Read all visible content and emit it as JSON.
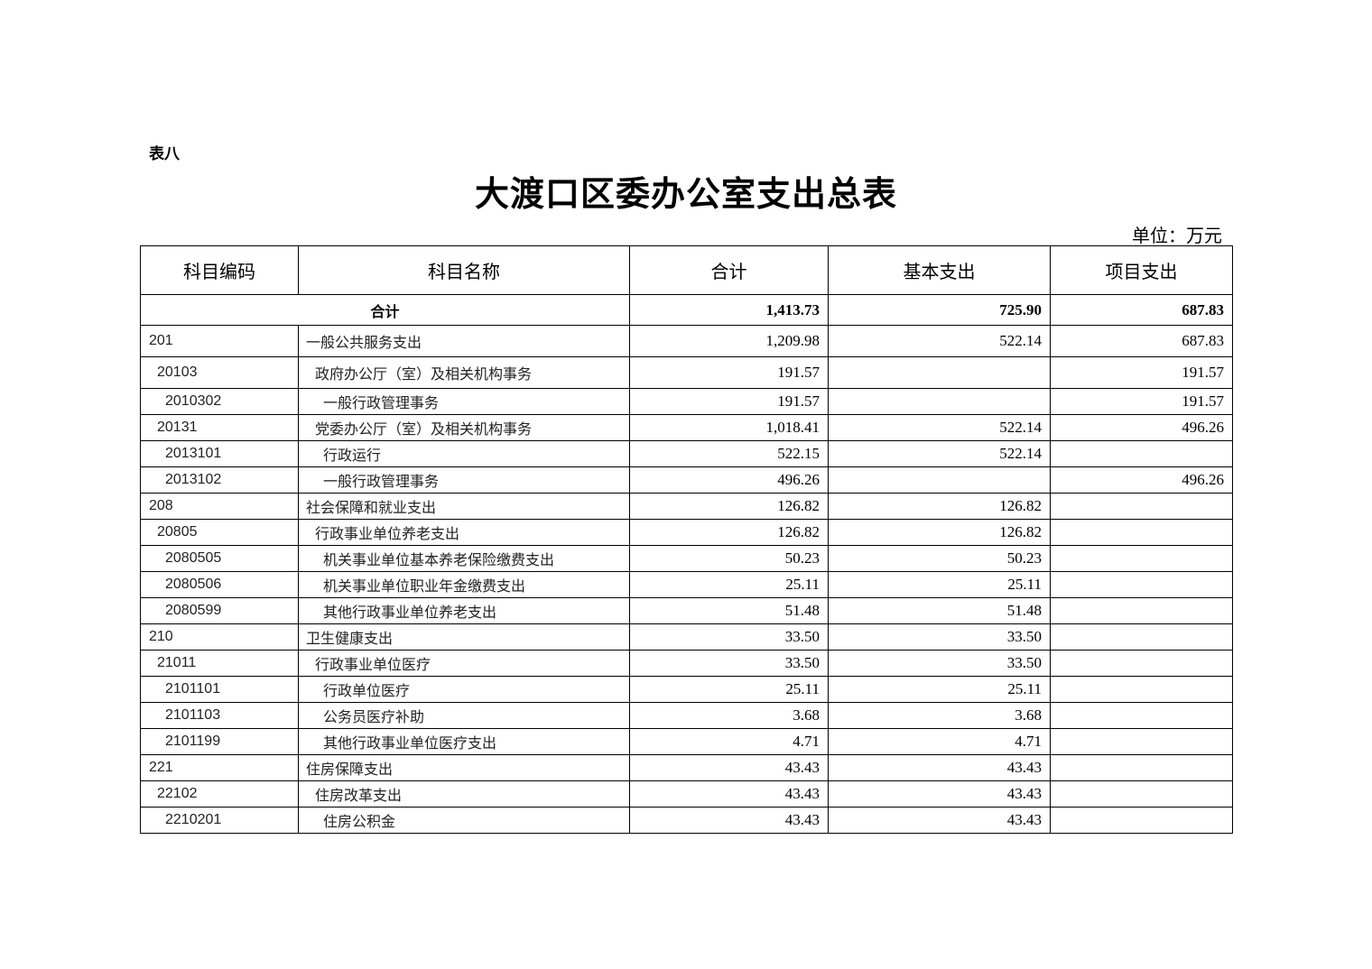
{
  "doc": {
    "label": "表八",
    "title": "大渡口区委办公室支出总表",
    "unit": "单位：万元"
  },
  "columns": [
    "科目编码",
    "科目名称",
    "合计",
    "基本支出",
    "项目支出"
  ],
  "total": {
    "label": "合计",
    "total": "1,413.73",
    "basic": "725.90",
    "project": "687.83"
  },
  "rows": [
    {
      "code": "201",
      "name": "一般公共服务支出",
      "total": "1,209.98",
      "basic": "522.14",
      "project": "687.83",
      "level": 0
    },
    {
      "code": "20103",
      "name": "政府办公厅（室）及相关机构事务",
      "total": "191.57",
      "basic": "",
      "project": "191.57",
      "level": 1
    },
    {
      "code": "2010302",
      "name": "一般行政管理事务",
      "total": "191.57",
      "basic": "",
      "project": "191.57",
      "level": 2
    },
    {
      "code": "20131",
      "name": "党委办公厅（室）及相关机构事务",
      "total": "1,018.41",
      "basic": "522.14",
      "project": "496.26",
      "level": 1
    },
    {
      "code": "2013101",
      "name": "行政运行",
      "total": "522.15",
      "basic": "522.14",
      "project": "",
      "level": 2
    },
    {
      "code": "2013102",
      "name": "一般行政管理事务",
      "total": "496.26",
      "basic": "",
      "project": "496.26",
      "level": 2
    },
    {
      "code": "208",
      "name": "社会保障和就业支出",
      "total": "126.82",
      "basic": "126.82",
      "project": "",
      "level": 0
    },
    {
      "code": "20805",
      "name": "行政事业单位养老支出",
      "total": "126.82",
      "basic": "126.82",
      "project": "",
      "level": 1
    },
    {
      "code": "2080505",
      "name": "机关事业单位基本养老保险缴费支出",
      "total": "50.23",
      "basic": "50.23",
      "project": "",
      "level": 2
    },
    {
      "code": "2080506",
      "name": "机关事业单位职业年金缴费支出",
      "total": "25.11",
      "basic": "25.11",
      "project": "",
      "level": 2
    },
    {
      "code": "2080599",
      "name": "其他行政事业单位养老支出",
      "total": "51.48",
      "basic": "51.48",
      "project": "",
      "level": 2
    },
    {
      "code": "210",
      "name": "卫生健康支出",
      "total": "33.50",
      "basic": "33.50",
      "project": "",
      "level": 0
    },
    {
      "code": "21011",
      "name": "行政事业单位医疗",
      "total": "33.50",
      "basic": "33.50",
      "project": "",
      "level": 1
    },
    {
      "code": "2101101",
      "name": "行政单位医疗",
      "total": "25.11",
      "basic": "25.11",
      "project": "",
      "level": 2
    },
    {
      "code": "2101103",
      "name": "公务员医疗补助",
      "total": "3.68",
      "basic": "3.68",
      "project": "",
      "level": 2
    },
    {
      "code": "2101199",
      "name": "其他行政事业单位医疗支出",
      "total": "4.71",
      "basic": "4.71",
      "project": "",
      "level": 2
    },
    {
      "code": "221",
      "name": "住房保障支出",
      "total": "43.43",
      "basic": "43.43",
      "project": "",
      "level": 0
    },
    {
      "code": "22102",
      "name": "住房改革支出",
      "total": "43.43",
      "basic": "43.43",
      "project": "",
      "level": 1
    },
    {
      "code": "2210201",
      "name": "住房公积金",
      "total": "43.43",
      "basic": "43.43",
      "project": "",
      "level": 2
    }
  ]
}
